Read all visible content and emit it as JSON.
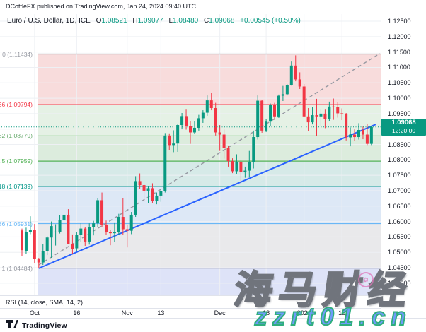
{
  "header": {
    "attribution": "DCottleFX published on TradingView.com, Jan 24, 2024 09:40 UTC",
    "symbol": "Euro / U.S. Dollar, 1D, ICE",
    "ohlc": {
      "o_label": "O",
      "o": "1.08521",
      "h_label": "H",
      "h": "1.09077",
      "l_label": "L",
      "l": "1.08480",
      "c_label": "C",
      "c": "1.09068",
      "change": "+0.00545 (+0.50%)"
    }
  },
  "rsi": {
    "label": "RSI (14, close, SMA, 14, 2)"
  },
  "footer": {
    "brand": "TradingView"
  },
  "watermark": {
    "title": "海马财经",
    "url": "zzrt01.cn",
    "stamp_glyph": "✿"
  },
  "chart_data": {
    "type": "candlestick",
    "title": "Euro / U.S. Dollar, 1D, ICE",
    "ylim": [
      1.036,
      1.127
    ],
    "y_axis": {
      "min": 1.04,
      "max": 1.125,
      "step": 0.005,
      "format_decimals": 5
    },
    "x_ticks": [
      {
        "label": "Oct",
        "i": 3
      },
      {
        "label": "16",
        "i": 13
      },
      {
        "label": "Nov",
        "i": 25
      },
      {
        "label": "13",
        "i": 33
      },
      {
        "label": "Dec",
        "i": 47
      },
      {
        "label": "18",
        "i": 58
      },
      {
        "label": "2024",
        "i": 67
      },
      {
        "label": "15",
        "i": 76
      },
      {
        "label": "Feb",
        "i": 89
      }
    ],
    "colors": {
      "up": "#089981",
      "down": "#f23645",
      "grid": "#eef0f4",
      "trendline": "#2962ff",
      "dashed": "#9598a1"
    },
    "last_price": {
      "value": "1.09068",
      "countdown": "12:20:00",
      "price": 1.09068,
      "color": "#089981"
    },
    "fib": {
      "start_index": 4,
      "levels": [
        {
          "label": "0 (1.11434)",
          "value": 1.11434,
          "color": "#9598a1"
        },
        {
          "label": "236 (1.09794)",
          "value": 1.09794,
          "color": "#f23645"
        },
        {
          "label": "382 (1.08779)",
          "value": 1.08779,
          "color": "#81c784"
        },
        {
          "label": "0.5 (1.07959)",
          "value": 1.07959,
          "color": "#4caf50"
        },
        {
          "label": "618 (1.07139)",
          "value": 1.07139,
          "color": "#009688"
        },
        {
          "label": "786 (1.05931)",
          "value": 1.05931,
          "color": "#64b5f6"
        },
        {
          "label": "1 (1.04484)",
          "value": 1.04484,
          "color": "#9598a1"
        }
      ],
      "bands": [
        {
          "from": 1.11434,
          "to": 1.09794,
          "color": "#f8dcdc"
        },
        {
          "from": 1.09794,
          "to": 1.08779,
          "color": "#e5f1e5"
        },
        {
          "from": 1.08779,
          "to": 1.07959,
          "color": "#dcecdd"
        },
        {
          "from": 1.07959,
          "to": 1.07139,
          "color": "#d6eae8"
        },
        {
          "from": 1.07139,
          "to": 1.05931,
          "color": "#dde8f6"
        },
        {
          "from": 1.05931,
          "to": 1.04484,
          "color": "#e9e9eb"
        },
        {
          "from": 1.04484,
          "to": null,
          "color": "#dee3f8"
        }
      ]
    },
    "trendline": {
      "from": {
        "i": 4,
        "price": 1.0448
      },
      "to": {
        "i": 84,
        "price": 1.0915
      }
    },
    "dashed_line": {
      "from": {
        "i": 4,
        "price": 1.0459
      },
      "to": {
        "i": 85,
        "price": 1.1145
      }
    },
    "candles": [
      [
        "09-27",
        1.0571,
        1.0577,
        1.0488,
        1.0507
      ],
      [
        "09-28",
        1.0505,
        1.058,
        1.0495,
        1.0566
      ],
      [
        "09-29",
        1.0566,
        1.0617,
        1.0559,
        1.0573
      ],
      [
        "10-02",
        1.0572,
        1.0592,
        1.0465,
        1.0479
      ],
      [
        "10-03",
        1.0479,
        1.0482,
        1.0448,
        1.0467
      ],
      [
        "10-04",
        1.0467,
        1.0526,
        1.0459,
        1.0505
      ],
      [
        "10-05",
        1.0505,
        1.0552,
        1.0491,
        1.0548
      ],
      [
        "10-06",
        1.0548,
        1.06,
        1.0482,
        1.0585
      ],
      [
        "10-09",
        1.0566,
        1.0591,
        1.0522,
        1.0567
      ],
      [
        "10-10",
        1.0567,
        1.062,
        1.0561,
        1.0604
      ],
      [
        "10-11",
        1.0604,
        1.0634,
        1.0599,
        1.0622
      ],
      [
        "10-12",
        1.0622,
        1.064,
        1.0526,
        1.0528
      ],
      [
        "10-13",
        1.0528,
        1.0558,
        1.0495,
        1.051
      ],
      [
        "10-16",
        1.0513,
        1.0565,
        1.0505,
        1.0557
      ],
      [
        "10-17",
        1.0557,
        1.0595,
        1.0533,
        1.0577
      ],
      [
        "10-18",
        1.0577,
        1.0582,
        1.0521,
        1.0535
      ],
      [
        "10-19",
        1.0535,
        1.0594,
        1.0525,
        1.0582
      ],
      [
        "10-20",
        1.0582,
        1.0602,
        1.0555,
        1.0594
      ],
      [
        "10-23",
        1.0594,
        1.0675,
        1.0583,
        1.0669
      ],
      [
        "10-24",
        1.0669,
        1.0694,
        1.0583,
        1.059
      ],
      [
        "10-25",
        1.059,
        1.0603,
        1.0556,
        1.0566
      ],
      [
        "10-26",
        1.0566,
        1.0573,
        1.0523,
        1.0562
      ],
      [
        "10-27",
        1.0562,
        1.0597,
        1.0534,
        1.0565
      ],
      [
        "10-30",
        1.0565,
        1.0625,
        1.0558,
        1.0615
      ],
      [
        "10-31",
        1.0615,
        1.0675,
        1.0557,
        1.0575
      ],
      [
        "11-01",
        1.0575,
        1.059,
        1.0516,
        1.057
      ],
      [
        "11-02",
        1.057,
        1.0631,
        1.0559,
        1.0622
      ],
      [
        "11-03",
        1.0622,
        1.0747,
        1.0615,
        1.0731
      ],
      [
        "11-06",
        1.0731,
        1.0756,
        1.0706,
        1.0718
      ],
      [
        "11-07",
        1.0718,
        1.0722,
        1.0664,
        1.07
      ],
      [
        "11-08",
        1.07,
        1.0716,
        1.066,
        1.0708
      ],
      [
        "11-09",
        1.0708,
        1.0724,
        1.066,
        1.0667
      ],
      [
        "11-10",
        1.0667,
        1.0694,
        1.0656,
        1.0684
      ],
      [
        "11-13",
        1.0684,
        1.0705,
        1.0664,
        1.0699
      ],
      [
        "11-14",
        1.0699,
        1.0887,
        1.0694,
        1.0879
      ],
      [
        "11-15",
        1.0879,
        1.0886,
        1.0832,
        1.0848
      ],
      [
        "11-16",
        1.0848,
        1.0896,
        1.0825,
        1.0853
      ],
      [
        "11-17",
        1.0853,
        1.0915,
        1.0826,
        1.0913
      ],
      [
        "11-20",
        1.0913,
        1.0952,
        1.0899,
        1.0942
      ],
      [
        "11-21",
        1.0942,
        1.0963,
        1.0898,
        1.091
      ],
      [
        "11-22",
        1.091,
        1.0926,
        1.0852,
        1.0889
      ],
      [
        "11-23",
        1.0889,
        1.0926,
        1.0884,
        1.0904
      ],
      [
        "11-24",
        1.0904,
        1.0946,
        1.0895,
        1.0935
      ],
      [
        "11-27",
        1.0935,
        1.0961,
        1.092,
        1.0953
      ],
      [
        "11-28",
        1.0953,
        1.1009,
        1.0943,
        1.0993
      ],
      [
        "11-29",
        1.0993,
        1.1017,
        1.0961,
        1.0968
      ],
      [
        "11-30",
        1.0968,
        1.0985,
        1.0879,
        1.0889
      ],
      [
        "12-01",
        1.0889,
        1.0913,
        1.0829,
        1.0882
      ],
      [
        "12-04",
        1.0882,
        1.0899,
        1.0804,
        1.0838
      ],
      [
        "12-05",
        1.0838,
        1.0846,
        1.0778,
        1.0796
      ],
      [
        "12-06",
        1.0796,
        1.0805,
        1.0757,
        1.0763
      ],
      [
        "12-07",
        1.0763,
        1.0818,
        1.0755,
        1.0794
      ],
      [
        "12-08",
        1.0794,
        1.0801,
        1.0724,
        1.0761
      ],
      [
        "12-11",
        1.0761,
        1.0778,
        1.0742,
        1.0765
      ],
      [
        "12-12",
        1.0765,
        1.0829,
        1.0743,
        1.0793
      ],
      [
        "12-13",
        1.0793,
        1.0895,
        1.0772,
        1.0874
      ],
      [
        "12-14",
        1.0874,
        1.1009,
        1.0866,
        1.0992
      ],
      [
        "12-15",
        1.0992,
        1.0995,
        1.0888,
        1.0895
      ],
      [
        "12-18",
        1.0895,
        1.0933,
        1.089,
        1.0924
      ],
      [
        "12-19",
        1.0924,
        1.0983,
        1.091,
        1.0979
      ],
      [
        "12-20",
        1.0979,
        1.0985,
        1.093,
        1.0941
      ],
      [
        "12-21",
        1.0941,
        1.1012,
        1.0936,
        1.1008
      ],
      [
        "12-22",
        1.1008,
        1.104,
        1.0991,
        1.1013
      ],
      [
        "12-26",
        1.1013,
        1.1045,
        1.1009,
        1.1042
      ],
      [
        "12-27",
        1.1042,
        1.1119,
        1.1041,
        1.1106
      ],
      [
        "12-28",
        1.1106,
        1.1139,
        1.1055,
        1.1061
      ],
      [
        "12-29",
        1.1061,
        1.1084,
        1.103,
        1.1038
      ],
      [
        "01-02",
        1.1038,
        1.1046,
        1.0938,
        1.0941
      ],
      [
        "01-03",
        1.0941,
        1.0968,
        1.0893,
        1.0922
      ],
      [
        "01-04",
        1.0922,
        1.0972,
        1.0915,
        1.0945
      ],
      [
        "01-05",
        1.0945,
        1.0998,
        1.0877,
        1.0941
      ],
      [
        "01-08",
        1.0941,
        1.0966,
        1.0909,
        1.095
      ],
      [
        "01-09",
        1.095,
        1.0963,
        1.0903,
        1.0932
      ],
      [
        "01-10",
        1.0932,
        1.0989,
        1.0925,
        1.0973
      ],
      [
        "01-11",
        1.0973,
        1.0999,
        1.093,
        1.0972
      ],
      [
        "01-12",
        1.0972,
        1.0987,
        1.0937,
        1.0951
      ],
      [
        "01-15",
        1.0951,
        1.0967,
        1.0929,
        1.095
      ],
      [
        "01-16",
        1.095,
        1.0952,
        1.0863,
        1.0873
      ],
      [
        "01-17",
        1.0873,
        1.0905,
        1.0844,
        1.0882
      ],
      [
        "01-18",
        1.0882,
        1.0899,
        1.0861,
        1.0874
      ],
      [
        "01-19",
        1.0874,
        1.0919,
        1.0866,
        1.0897
      ],
      [
        "01-22",
        1.0897,
        1.0908,
        1.0867,
        1.0882
      ],
      [
        "01-23",
        1.0882,
        1.0916,
        1.0848,
        1.0852
      ],
      [
        "01-24",
        1.08521,
        1.09077,
        1.0848,
        1.09068
      ]
    ]
  }
}
